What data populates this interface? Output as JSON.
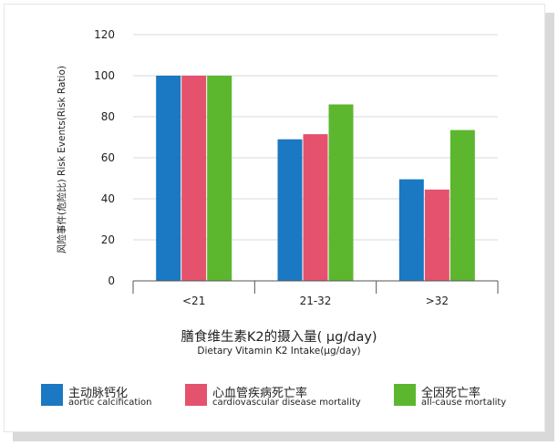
{
  "chart_data": {
    "type": "bar",
    "categories": [
      "<21",
      "21-32",
      ">32"
    ],
    "series": [
      {
        "name": "主动脉钙化",
        "name_en": "aortic calcification",
        "color": "#1b78c2",
        "values": [
          100,
          69,
          49.5
        ]
      },
      {
        "name": "心血管疾病死亡率",
        "name_en": "cardiovascular disease mortality",
        "color": "#e4526d",
        "values": [
          100,
          71.5,
          44.5
        ]
      },
      {
        "name": "全因死亡率",
        "name_en": "all-cause mortality",
        "color": "#5cb72f",
        "values": [
          100,
          86,
          73.5
        ]
      }
    ],
    "xlabel": "膳食维生素K2的摄入量( μg/day)",
    "xlabel_en": "Dietary Vitamin K2 Intake(μg/day)",
    "ylabel": "风险事件(危险比) Risk Events(Risk Ratio)",
    "ylim": [
      0,
      120
    ],
    "yticks": [
      0,
      20,
      40,
      60,
      80,
      100,
      120
    ],
    "grid": true,
    "legend_position": "bottom"
  }
}
